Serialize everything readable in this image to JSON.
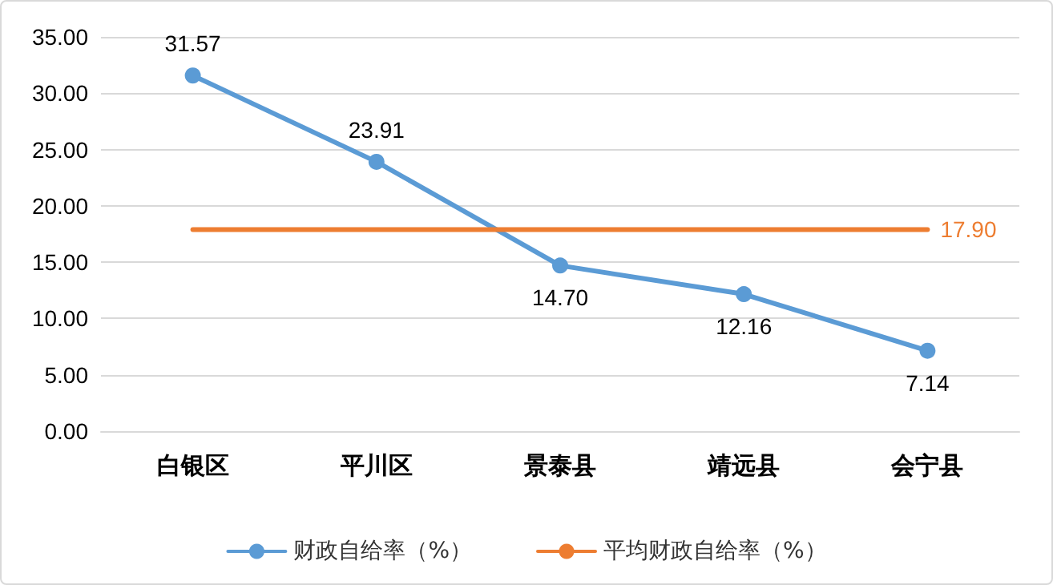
{
  "chart_data": {
    "type": "line",
    "categories": [
      "白银区",
      "平川区",
      "景泰县",
      "靖远县",
      "会宁县"
    ],
    "series": [
      {
        "name": "财政自给率（%）",
        "color": "#5b9bd5",
        "marker": "circle",
        "values": [
          31.57,
          23.91,
          14.7,
          12.16,
          7.14
        ],
        "value_labels": [
          "31.57",
          "23.91",
          "14.70",
          "12.16",
          "7.14"
        ]
      },
      {
        "name": "平均财政自给率（%）",
        "color": "#ed7d31",
        "marker": "none",
        "values": [
          17.9,
          17.9,
          17.9,
          17.9,
          17.9
        ],
        "value_labels": [
          null,
          null,
          null,
          null,
          "17.90"
        ]
      }
    ],
    "ylim": [
      0,
      35
    ],
    "yticks": [
      {
        "value": 0,
        "label": "0.00"
      },
      {
        "value": 5,
        "label": "5.00"
      },
      {
        "value": 10,
        "label": "10.00"
      },
      {
        "value": 15,
        "label": "15.00"
      },
      {
        "value": 20,
        "label": "20.00"
      },
      {
        "value": 25,
        "label": "25.00"
      },
      {
        "value": 30,
        "label": "30.00"
      },
      {
        "value": 35,
        "label": "35.00"
      }
    ],
    "grid": "y",
    "legend": "bottom"
  }
}
